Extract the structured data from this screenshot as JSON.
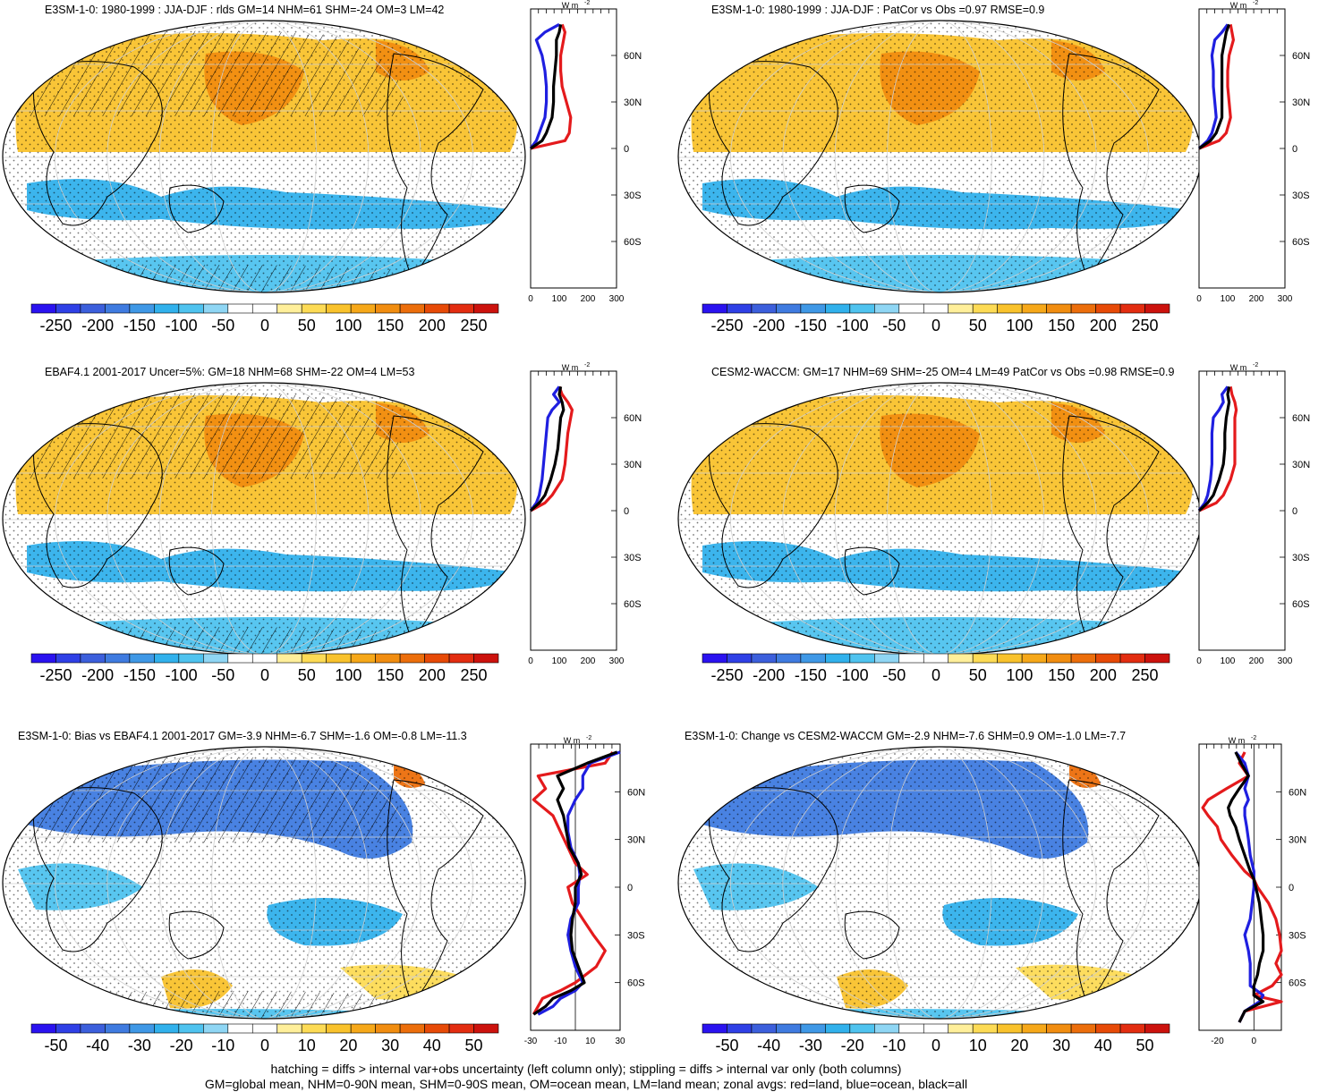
{
  "colors": {
    "palette": [
      "#2a12f0",
      "#2f40e6",
      "#3c5fdc",
      "#3f7be0",
      "#3f98e6",
      "#31b1ec",
      "#4fc3ef",
      "#8fd6f4",
      "#ffffff",
      "#ffffff",
      "#ffef9a",
      "#fddb55",
      "#f9c22c",
      "#f6a819",
      "#f18d10",
      "#ec6e0b",
      "#e74a07",
      "#e32d10",
      "#cc120d"
    ],
    "land": "#e41a1c",
    "ocean": "#1f1fe0",
    "all": "#000000"
  },
  "panels": [
    {
      "title": "E3SM-1-0: 1980-1999 : JJA-DJF : rlds GM=14 NHM=61 SHM=-24 OM=3 LM=42",
      "unit": "W m",
      "unit_sup": "-2",
      "hatching": true,
      "chart_data": {
        "type": "line",
        "xlim": [
          0,
          300
        ],
        "xticks": [
          "0",
          "100",
          "200",
          "300"
        ],
        "yticks": [
          "60N",
          "30N",
          "0",
          "30S",
          "60S"
        ],
        "colorbar_ticks": [
          "-250",
          "-200",
          "-150",
          "-100",
          "-50",
          "0",
          "50",
          "100",
          "150",
          "200",
          "250"
        ],
        "series": [
          {
            "key": "land",
            "lat": [
              0,
              5,
              10,
              20,
              30,
              40,
              50,
              60,
              70,
              75,
              80
            ],
            "values": [
              0,
              120,
              135,
              140,
              125,
              110,
              105,
              105,
              115,
              120,
              110
            ]
          },
          {
            "key": "ocean",
            "lat": [
              0,
              5,
              10,
              20,
              30,
              40,
              50,
              60,
              70,
              75,
              80
            ],
            "values": [
              0,
              20,
              30,
              50,
              55,
              55,
              50,
              40,
              20,
              50,
              100
            ]
          },
          {
            "key": "all",
            "lat": [
              0,
              5,
              10,
              20,
              30,
              40,
              50,
              60,
              70,
              75,
              80
            ],
            "values": [
              0,
              40,
              55,
              75,
              80,
              80,
              85,
              90,
              90,
              100,
              105
            ]
          }
        ]
      }
    },
    {
      "title": "E3SM-1-0: 1980-1999 : JJA-DJF : PatCor vs Obs =0.97 RMSE=0.9",
      "unit": "W m",
      "unit_sup": "-2",
      "hatching": false,
      "chart_data": {
        "type": "line",
        "xlim": [
          0,
          300
        ],
        "xticks": [
          "0",
          "100",
          "200",
          "300"
        ],
        "yticks": [
          "60N",
          "30N",
          "0",
          "30S",
          "60S"
        ],
        "colorbar_ticks": [
          "-250",
          "-200",
          "-150",
          "-100",
          "-50",
          "0",
          "50",
          "100",
          "150",
          "200",
          "250"
        ],
        "series": [
          {
            "key": "land",
            "lat": [
              0,
              5,
              10,
              20,
              30,
              40,
              50,
              60,
              70,
              75,
              80
            ],
            "values": [
              0,
              70,
              95,
              110,
              105,
              100,
              100,
              105,
              120,
              115,
              110
            ]
          },
          {
            "key": "ocean",
            "lat": [
              0,
              5,
              10,
              20,
              30,
              40,
              50,
              60,
              70,
              75,
              80
            ],
            "values": [
              0,
              30,
              45,
              60,
              55,
              50,
              50,
              45,
              55,
              80,
              100
            ]
          },
          {
            "key": "all",
            "lat": [
              0,
              5,
              10,
              20,
              30,
              40,
              50,
              60,
              70,
              75,
              80
            ],
            "values": [
              0,
              40,
              60,
              80,
              80,
              80,
              80,
              80,
              90,
              95,
              105
            ]
          }
        ]
      }
    },
    {
      "title": "EBAF4.1 2001-2017 Uncer=5%: GM=18 NHM=68 SHM=-22 OM=4 LM=53",
      "unit": "W m",
      "unit_sup": "-2",
      "hatching": true,
      "chart_data": {
        "type": "line",
        "xlim": [
          0,
          300
        ],
        "xticks": [
          "0",
          "100",
          "200",
          "300"
        ],
        "yticks": [
          "60N",
          "30N",
          "0",
          "30S",
          "60S"
        ],
        "colorbar_ticks": [
          "-250",
          "-200",
          "-150",
          "-100",
          "-50",
          "0",
          "50",
          "100",
          "150",
          "200",
          "250"
        ],
        "series": [
          {
            "key": "land",
            "lat": [
              0,
              5,
              10,
              20,
              30,
              40,
              50,
              60,
              65,
              70,
              75,
              80
            ],
            "values": [
              0,
              50,
              75,
              110,
              120,
              125,
              130,
              140,
              145,
              130,
              110,
              100
            ]
          },
          {
            "key": "ocean",
            "lat": [
              0,
              5,
              10,
              20,
              30,
              40,
              50,
              60,
              65,
              70,
              75,
              80
            ],
            "values": [
              0,
              20,
              30,
              40,
              45,
              50,
              55,
              60,
              75,
              100,
              80,
              100
            ]
          },
          {
            "key": "all",
            "lat": [
              0,
              5,
              10,
              20,
              30,
              40,
              50,
              60,
              65,
              70,
              75,
              80
            ],
            "values": [
              0,
              30,
              50,
              70,
              85,
              95,
              100,
              105,
              115,
              110,
              100,
              105
            ]
          }
        ]
      }
    },
    {
      "title": "CESM2-WACCM: GM=17 NHM=69 SHM=-25 OM=4 LM=49 PatCor vs Obs =0.98 RMSE=0.9",
      "unit": "W m",
      "unit_sup": "-2",
      "hatching": false,
      "chart_data": {
        "type": "line",
        "xlim": [
          0,
          300
        ],
        "xticks": [
          "0",
          "100",
          "200",
          "300"
        ],
        "yticks": [
          "60N",
          "30N",
          "0",
          "30S",
          "60S"
        ],
        "colorbar_ticks": [
          "-250",
          "-200",
          "-150",
          "-100",
          "-50",
          "0",
          "50",
          "100",
          "150",
          "200",
          "250"
        ],
        "series": [
          {
            "key": "land",
            "lat": [
              0,
              5,
              10,
              20,
              30,
              40,
              50,
              60,
              65,
              70,
              75,
              80
            ],
            "values": [
              0,
              60,
              85,
              110,
              125,
              125,
              125,
              125,
              130,
              125,
              115,
              110
            ]
          },
          {
            "key": "ocean",
            "lat": [
              0,
              5,
              10,
              20,
              30,
              40,
              50,
              60,
              65,
              70,
              75,
              80
            ],
            "values": [
              0,
              20,
              30,
              40,
              45,
              45,
              45,
              50,
              70,
              85,
              80,
              100
            ]
          },
          {
            "key": "all",
            "lat": [
              0,
              5,
              10,
              20,
              30,
              40,
              50,
              60,
              65,
              70,
              75,
              80
            ],
            "values": [
              0,
              30,
              50,
              70,
              85,
              90,
              90,
              95,
              100,
              105,
              100,
              105
            ]
          }
        ]
      }
    },
    {
      "title": "E3SM-1-0: Bias vs EBAF4.1 2001-2017 GM=-3.9 NHM=-6.7 SHM=-1.6 OM=-0.8 LM=-11.3",
      "unit": "W m",
      "unit_sup": "-2",
      "hatching": true,
      "chart_data": {
        "type": "line",
        "xlim": [
          -30,
          30
        ],
        "xticks": [
          "-30",
          "-10",
          "10",
          "30"
        ],
        "yticks": [
          "60N",
          "30N",
          "0",
          "30S",
          "60S"
        ],
        "colorbar_ticks": [
          "-50",
          "-40",
          "-30",
          "-20",
          "-10",
          "0",
          "10",
          "20",
          "30",
          "40",
          "50"
        ],
        "series": [
          {
            "key": "land",
            "lat": [
              85,
              78,
              70,
              62,
              55,
              45,
              35,
              25,
              15,
              8,
              0,
              -10,
              -20,
              -30,
              -40,
              -50,
              -60,
              -65,
              -70,
              -75,
              -80
            ],
            "values": [
              25,
              20,
              -25,
              -20,
              -28,
              -15,
              -10,
              -5,
              0,
              8,
              -5,
              -2,
              5,
              12,
              20,
              14,
              0,
              -10,
              -22,
              -25,
              -28
            ]
          },
          {
            "key": "ocean",
            "lat": [
              85,
              78,
              70,
              62,
              55,
              45,
              35,
              25,
              15,
              8,
              0,
              -10,
              -20,
              -30,
              -40,
              -50,
              -60,
              -65,
              -70,
              -75,
              -80
            ],
            "values": [
              30,
              10,
              5,
              5,
              0,
              -5,
              -5,
              -3,
              2,
              3,
              2,
              2,
              -3,
              -5,
              -3,
              0,
              5,
              0,
              -10,
              -15,
              -25
            ]
          },
          {
            "key": "all",
            "lat": [
              85,
              78,
              70,
              62,
              55,
              45,
              35,
              25,
              15,
              8,
              0,
              -10,
              -20,
              -30,
              -40,
              -50,
              -60,
              -65,
              -70,
              -75,
              -80
            ],
            "values": [
              28,
              8,
              -12,
              -8,
              -12,
              -8,
              -6,
              -4,
              2,
              4,
              0,
              0,
              -2,
              -3,
              -2,
              2,
              6,
              -3,
              -15,
              -20,
              -28
            ]
          }
        ]
      }
    },
    {
      "title": "E3SM-1-0: Change vs CESM2-WACCM GM=-2.9 NHM=-7.6 SHM=0.9 OM=-1.0 LM=-7.7",
      "unit": "W m",
      "unit_sup": "-2",
      "hatching": false,
      "chart_data": {
        "type": "line",
        "xlim": [
          -30,
          15
        ],
        "xticks": [
          "-20",
          "0"
        ],
        "yticks": [
          "60N",
          "30N",
          "0",
          "30S",
          "60S"
        ],
        "colorbar_ticks": [
          "-50",
          "-40",
          "-30",
          "-20",
          "-10",
          "0",
          "10",
          "20",
          "30",
          "40",
          "50"
        ],
        "series": [
          {
            "key": "land",
            "lat": [
              85,
              78,
              70,
              62,
              55,
              50,
              45,
              38,
              30,
              20,
              10,
              5,
              0,
              -10,
              -20,
              -30,
              -40,
              -48,
              -55,
              -62,
              -68,
              -72,
              -78,
              -85
            ],
            "values": [
              -5,
              -8,
              -3,
              -15,
              -25,
              -28,
              -25,
              -20,
              -18,
              -12,
              -5,
              0,
              2,
              8,
              12,
              14,
              15,
              12,
              15,
              10,
              0,
              15,
              -5,
              -8
            ]
          },
          {
            "key": "ocean",
            "lat": [
              85,
              78,
              70,
              62,
              55,
              50,
              45,
              38,
              30,
              20,
              10,
              5,
              0,
              -10,
              -20,
              -30,
              -40,
              -48,
              -55,
              -62,
              -68,
              -72,
              -78,
              -85
            ],
            "values": [
              -10,
              -5,
              -3,
              -5,
              -3,
              -5,
              -5,
              -4,
              -3,
              -2,
              0,
              0,
              0,
              -1,
              -2,
              -5,
              -3,
              -2,
              -2,
              -2,
              5,
              3,
              -5,
              -8
            ]
          },
          {
            "key": "all",
            "lat": [
              85,
              78,
              70,
              62,
              55,
              50,
              45,
              38,
              30,
              20,
              10,
              5,
              0,
              -10,
              -20,
              -30,
              -40,
              -48,
              -55,
              -62,
              -68,
              -72,
              -78,
              -85
            ],
            "values": [
              -10,
              -7,
              -3,
              -8,
              -12,
              -14,
              -13,
              -10,
              -8,
              -5,
              -2,
              0,
              1,
              3,
              4,
              5,
              5,
              3,
              2,
              0,
              0,
              5,
              -5,
              -8
            ]
          }
        ]
      }
    }
  ],
  "footer": {
    "line1": "hatching = diffs > internal var+obs uncertainty (left column only); stippling = diffs > internal var only (both columns)",
    "line2": "GM=global mean, NHM=0-90N mean, SHM=0-90S mean, OM=ocean mean, LM=land mean; zonal avgs: red=land, blue=ocean, black=all"
  }
}
